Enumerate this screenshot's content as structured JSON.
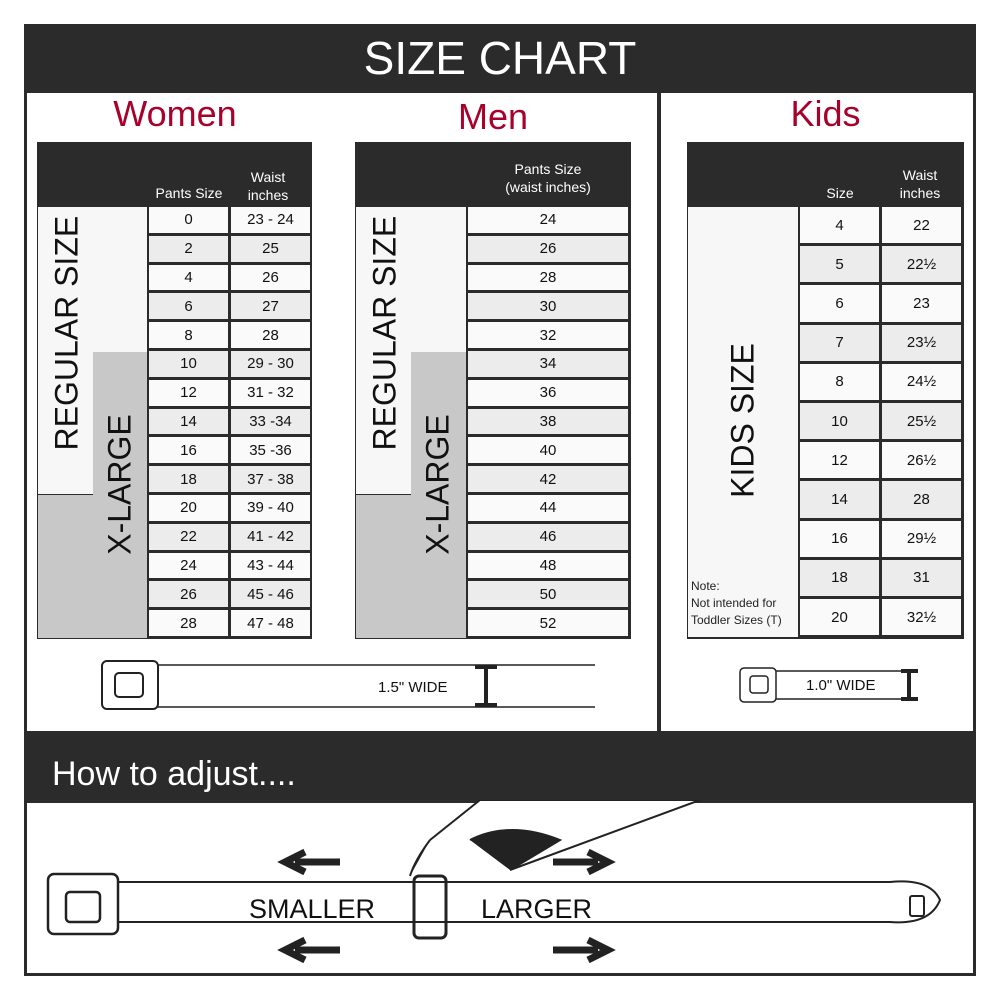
{
  "header": {
    "title": "SIZE CHART"
  },
  "colors": {
    "accent": "#a6022c",
    "dark": "#2b2b2b",
    "xlarge_fill": "#c8c8c8"
  },
  "women": {
    "title": "Women",
    "col1": "Pants Size",
    "col2": "Waist inches",
    "regular_label": "REGULAR SIZE",
    "xlarge_label": "X-LARGE",
    "rows": [
      [
        "0",
        "23 - 24"
      ],
      [
        "2",
        "25"
      ],
      [
        "4",
        "26"
      ],
      [
        "6",
        "27"
      ],
      [
        "8",
        "28"
      ],
      [
        "10",
        "29 - 30"
      ],
      [
        "12",
        "31 - 32"
      ],
      [
        "14",
        "33 -34"
      ],
      [
        "16",
        "35 -36"
      ],
      [
        "18",
        "37 - 38"
      ],
      [
        "20",
        "39 - 40"
      ],
      [
        "22",
        "41 - 42"
      ],
      [
        "24",
        "43 - 44"
      ],
      [
        "26",
        "45 - 46"
      ],
      [
        "28",
        "47 - 48"
      ]
    ],
    "belt_width": "1.5\" WIDE"
  },
  "men": {
    "title": "Men",
    "col1": "Pants Size (waist inches)",
    "regular_label": "REGULAR SIZE",
    "xlarge_label": "X-LARGE",
    "rows": [
      "24",
      "26",
      "28",
      "30",
      "32",
      "34",
      "36",
      "38",
      "40",
      "42",
      "44",
      "46",
      "48",
      "50",
      "52"
    ]
  },
  "kids": {
    "title": "Kids",
    "col1": "Size",
    "col2": "Waist inches",
    "label": "KIDS SIZE",
    "note": "Note:\nNot intended for\nToddler Sizes (T)",
    "rows": [
      [
        "4",
        "22"
      ],
      [
        "5",
        "22½"
      ],
      [
        "6",
        "23"
      ],
      [
        "7",
        "23½"
      ],
      [
        "8",
        "24½"
      ],
      [
        "10",
        "25½"
      ],
      [
        "12",
        "26½"
      ],
      [
        "14",
        "28"
      ],
      [
        "16",
        "29½"
      ],
      [
        "18",
        "31"
      ],
      [
        "20",
        "32½"
      ]
    ],
    "belt_width": "1.0\" WIDE"
  },
  "adjust": {
    "title": "How to adjust....",
    "smaller": "SMALLER",
    "larger": "LARGER"
  }
}
